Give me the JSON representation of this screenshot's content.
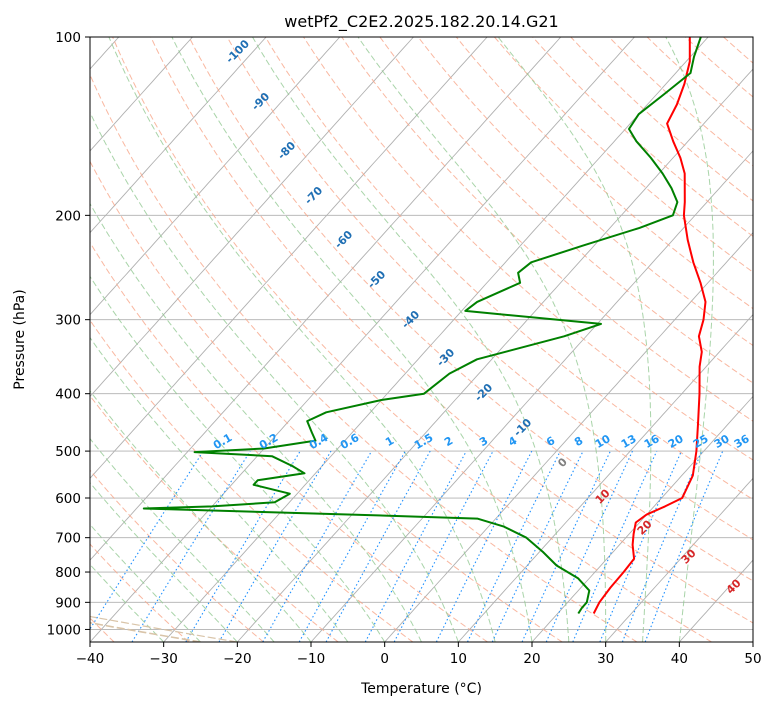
{
  "chart_data": {
    "type": "skew-t",
    "title": "wetPf2_C2E2.2025.182.20.14.G21",
    "xlabel": "Temperature (°C)",
    "ylabel": "Pressure (hPa)",
    "xlim": [
      -40,
      50
    ],
    "ylim": [
      1050,
      100
    ],
    "yscale": "log",
    "grid": true,
    "x_ticks": [
      "−40",
      "−30",
      "−20",
      "−10",
      "0",
      "10",
      "20",
      "30",
      "40",
      "50"
    ],
    "y_ticks": [
      "100",
      "200",
      "300",
      "400",
      "500",
      "600",
      "700",
      "800",
      "900",
      "1000"
    ],
    "series": [
      {
        "color": "#ff0000",
        "points": [
          [
            940,
            24.9
          ],
          [
            900,
            24.3
          ],
          [
            850,
            24.0
          ],
          [
            800,
            23.9
          ],
          [
            760,
            23.7
          ],
          [
            720,
            21.8
          ],
          [
            690,
            20.6
          ],
          [
            660,
            19.5
          ],
          [
            640,
            20.0
          ],
          [
            620,
            21.5
          ],
          [
            600,
            22.8
          ],
          [
            550,
            21.5
          ],
          [
            500,
            19.0
          ],
          [
            450,
            15.9
          ],
          [
            400,
            12.4
          ],
          [
            360,
            9.1
          ],
          [
            340,
            7.6
          ],
          [
            320,
            5.3
          ],
          [
            300,
            3.9
          ],
          [
            280,
            2.0
          ],
          [
            260,
            -1.0
          ],
          [
            240,
            -4.5
          ],
          [
            220,
            -8.0
          ],
          [
            200,
            -11.5
          ],
          [
            190,
            -13.0
          ],
          [
            170,
            -16.5
          ],
          [
            160,
            -19.0
          ],
          [
            150,
            -22.0
          ],
          [
            140,
            -25.0
          ],
          [
            130,
            -26.0
          ],
          [
            120,
            -27.5
          ],
          [
            110,
            -29.5
          ],
          [
            100,
            -32.5
          ]
        ]
      },
      {
        "color": "#008000",
        "points": [
          [
            940,
            22.8
          ],
          [
            920,
            22.6
          ],
          [
            900,
            22.6
          ],
          [
            860,
            21.5
          ],
          [
            820,
            18.5
          ],
          [
            780,
            14.0
          ],
          [
            740,
            10.5
          ],
          [
            700,
            6.5
          ],
          [
            670,
            2.0
          ],
          [
            650,
            -2.5
          ],
          [
            640,
            -20.0
          ],
          [
            625,
            -49.0
          ],
          [
            620,
            -40.0
          ],
          [
            610,
            -32.0
          ],
          [
            590,
            -31.0
          ],
          [
            570,
            -37.0
          ],
          [
            560,
            -37.0
          ],
          [
            545,
            -31.5
          ],
          [
            530,
            -34.0
          ],
          [
            510,
            -38.0
          ],
          [
            502,
            -49.0
          ],
          [
            495,
            -40.0
          ],
          [
            480,
            -34.0
          ],
          [
            465,
            -35.5
          ],
          [
            445,
            -37.5
          ],
          [
            430,
            -36.0
          ],
          [
            410,
            -30.0
          ],
          [
            400,
            -25.0
          ],
          [
            370,
            -24.0
          ],
          [
            350,
            -22.0
          ],
          [
            320,
            -13.0
          ],
          [
            305,
            -9.5
          ],
          [
            290,
            -29.5
          ],
          [
            280,
            -29.0
          ],
          [
            260,
            -25.5
          ],
          [
            250,
            -27.0
          ],
          [
            240,
            -26.5
          ],
          [
            225,
            -21.5
          ],
          [
            210,
            -16.0
          ],
          [
            200,
            -13.0
          ],
          [
            190,
            -14.0
          ],
          [
            180,
            -16.5
          ],
          [
            170,
            -19.5
          ],
          [
            160,
            -23.0
          ],
          [
            150,
            -27.0
          ],
          [
            143,
            -29.5
          ],
          [
            135,
            -30.0
          ],
          [
            125,
            -29.0
          ],
          [
            115,
            -28.0
          ],
          [
            108,
            -29.5
          ],
          [
            100,
            -31.0
          ]
        ]
      }
    ],
    "dry_adiabat_labels": [
      "-100",
      "-90",
      "-80",
      "-70",
      "-60",
      "-50",
      "-40",
      "-30",
      "-20",
      "-10",
      "0",
      "10",
      "20",
      "30",
      "40"
    ],
    "mixing_ratio_labels": [
      "0.1",
      "0.2",
      "0.4",
      "0.6",
      "1",
      "1.5",
      "2",
      "3",
      "4",
      "6",
      "8",
      "10",
      "13",
      "16",
      "20",
      "25",
      "30",
      "36"
    ],
    "colors": {
      "isotherm": "#b0b0b0",
      "isobar": "#b0b0b0",
      "dry_adiabat": "#f7a689",
      "moist_adiabat": "#93c993",
      "mixing_ratio": "#1e90ff",
      "theta_label_cold": "#1f6fb4",
      "theta_label_warm": "#d62728",
      "theta_label_zero": "#808080",
      "mixing_label": "#2196f3",
      "temperature": "#ff0000",
      "dewpoint": "#008000",
      "outer_curve": "#d9c4a8"
    }
  }
}
